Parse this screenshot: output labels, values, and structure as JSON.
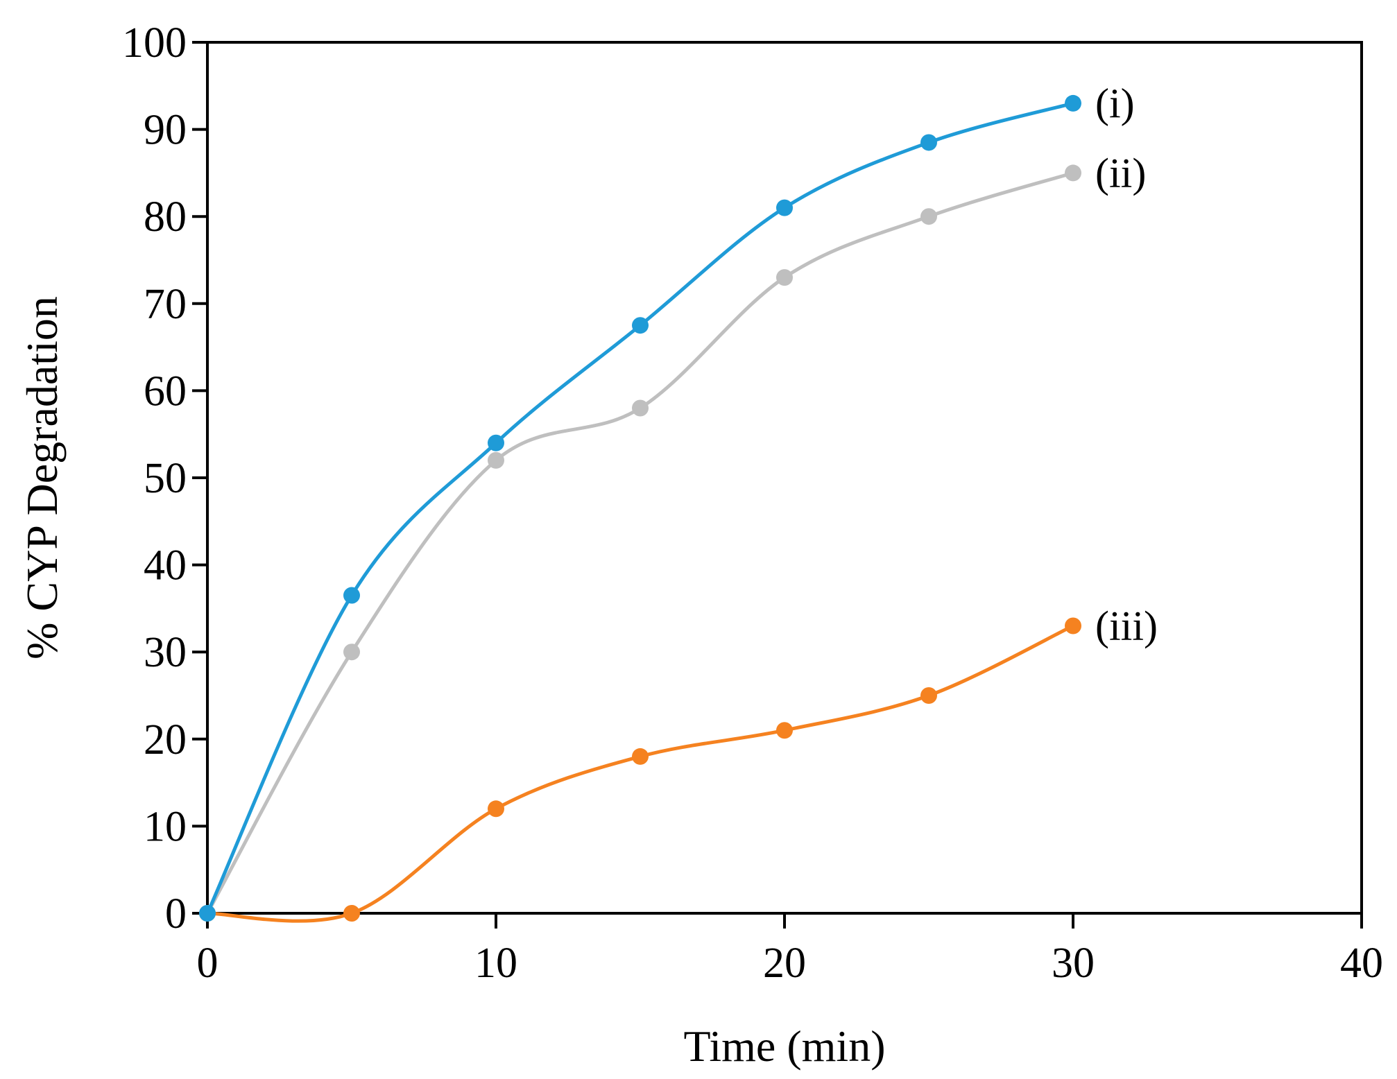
{
  "chart_data": {
    "type": "line",
    "title": "",
    "xlabel": "Time (min)",
    "ylabel": "% CYP Degradation",
    "xlim": [
      0,
      40
    ],
    "ylim": [
      0,
      100
    ],
    "xticks": [
      0,
      10,
      20,
      30,
      40
    ],
    "yticks": [
      0,
      10,
      20,
      30,
      40,
      50,
      60,
      70,
      80,
      90,
      100
    ],
    "grid": false,
    "legend": "inline labels at series ends (right)",
    "series": [
      {
        "name": "(i)",
        "color": "#1f9bd7",
        "x": [
          0,
          5,
          10,
          15,
          20,
          25,
          30
        ],
        "y": [
          0,
          36.5,
          54,
          67.5,
          81,
          88.5,
          93
        ]
      },
      {
        "name": "(ii)",
        "color": "#bfbfbf",
        "x": [
          0,
          5,
          10,
          15,
          20,
          25,
          30
        ],
        "y": [
          0,
          30,
          52,
          58,
          73,
          80,
          85
        ]
      },
      {
        "name": "(iii)",
        "color": "#f58220",
        "x": [
          0,
          5,
          10,
          15,
          20,
          25,
          30
        ],
        "y": [
          0,
          0,
          12,
          18,
          21,
          25,
          33
        ]
      }
    ]
  }
}
